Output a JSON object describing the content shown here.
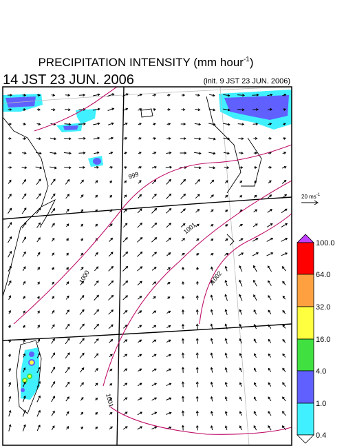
{
  "title": {
    "text": "PRECIPITATION INTENSITY (mm hour",
    "exponent": "-1",
    "close": ")"
  },
  "valid_time": "14 JST 23 JUN. 2006",
  "init_time": "(init. 9 JST 23 JUN. 2006)",
  "reference_vector": {
    "label": "20 ms",
    "exponent": "-1"
  },
  "contours": [
    {
      "label": "999"
    },
    {
      "label": "1000"
    },
    {
      "label": "1001"
    },
    {
      "label": "1002"
    },
    {
      "label": "1001"
    }
  ],
  "colorbar": {
    "labels": [
      "100.0",
      "64.0",
      "32.0",
      "16.0",
      "4.0",
      "1.0",
      "0.4"
    ]
  }
}
